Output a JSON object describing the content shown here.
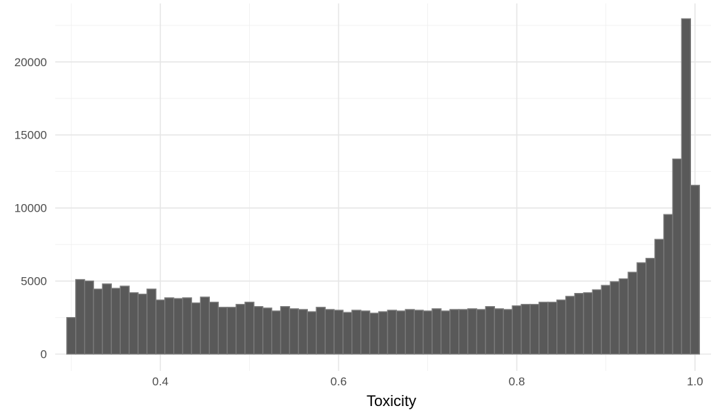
{
  "chart_data": {
    "type": "bar",
    "title": "",
    "xlabel": "Toxicity",
    "ylabel": "",
    "xlim": [
      0.282,
      1.018
    ],
    "ylim": [
      -1150,
      24000
    ],
    "x_ticks": [
      {
        "value": 0.4,
        "label": "0.4"
      },
      {
        "value": 0.6,
        "label": "0.6"
      },
      {
        "value": 0.8,
        "label": "0.8"
      },
      {
        "value": 1.0,
        "label": "1.0"
      }
    ],
    "y_ticks": [
      {
        "value": 0,
        "label": "0"
      },
      {
        "value": 5000,
        "label": "5000"
      },
      {
        "value": 10000,
        "label": "10000"
      },
      {
        "value": 15000,
        "label": "15000"
      },
      {
        "value": 20000,
        "label": "20000"
      }
    ],
    "bin_start": 0.295,
    "bin_width": 0.01,
    "values": [
      2500,
      5100,
      5000,
      4450,
      4800,
      4500,
      4650,
      4200,
      4100,
      4450,
      3700,
      3850,
      3800,
      3850,
      3500,
      3900,
      3550,
      3200,
      3200,
      3400,
      3550,
      3250,
      3150,
      2950,
      3250,
      3100,
      3050,
      2900,
      3200,
      3050,
      3000,
      2850,
      3000,
      2950,
      2800,
      2900,
      3000,
      2950,
      3050,
      3000,
      2950,
      3100,
      2950,
      3050,
      3050,
      3100,
      3050,
      3250,
      3100,
      3050,
      3300,
      3400,
      3400,
      3550,
      3550,
      3700,
      3950,
      4150,
      4200,
      4400,
      4700,
      4950,
      5150,
      5600,
      6250,
      6550,
      7850,
      9550,
      13350,
      22950,
      11550
    ],
    "grid": true,
    "legend": "none"
  }
}
